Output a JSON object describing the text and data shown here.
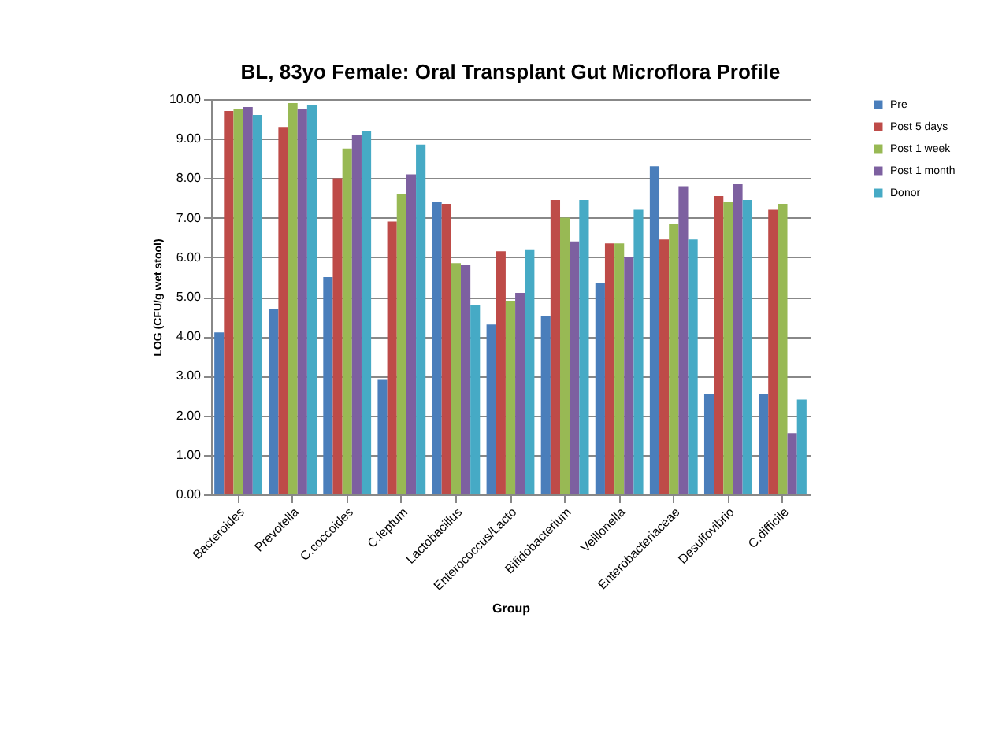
{
  "chart_data": {
    "type": "bar",
    "title": "BL, 83yo Female: Oral Transplant Gut Microflora Profile",
    "xlabel": "Group",
    "ylabel": "LOG (CFU/g wet stool)",
    "categories": [
      "Bacteroides",
      "Prevotella",
      "C.coccoides",
      "C.leptum",
      "Lactobacillus",
      "Enterococcus/Lacto",
      "Bifidobacterium",
      "Veillonella",
      "Enterobacteriaceae",
      "Desulfovibrio",
      "C.difficile"
    ],
    "series": [
      {
        "name": "Pre",
        "color": "#4a7ebb",
        "values": [
          4.1,
          4.7,
          5.5,
          2.9,
          7.4,
          4.3,
          4.5,
          5.35,
          8.3,
          2.55,
          2.55
        ]
      },
      {
        "name": "Post 5 days",
        "color": "#be4b48",
        "values": [
          9.7,
          9.3,
          8.0,
          6.9,
          7.35,
          6.15,
          7.45,
          6.35,
          6.45,
          7.55,
          7.2
        ]
      },
      {
        "name": "Post 1 week",
        "color": "#98b954",
        "values": [
          9.75,
          9.9,
          8.75,
          7.6,
          5.85,
          4.9,
          7.0,
          6.35,
          6.85,
          7.4,
          7.35
        ]
      },
      {
        "name": "Post 1 month",
        "color": "#7d60a0",
        "values": [
          9.8,
          9.75,
          9.1,
          8.1,
          5.8,
          5.1,
          6.4,
          6.0,
          7.8,
          7.85,
          1.55
        ]
      },
      {
        "name": "Donor",
        "color": "#46aac5",
        "values": [
          9.6,
          9.85,
          9.2,
          8.85,
          4.8,
          6.2,
          7.45,
          7.2,
          6.45,
          7.45,
          2.4
        ]
      }
    ],
    "ylim": [
      0,
      10
    ],
    "yticks": [
      {
        "value": 0,
        "label": "0.00"
      },
      {
        "value": 1,
        "label": "1.00"
      },
      {
        "value": 2,
        "label": "2.00"
      },
      {
        "value": 3,
        "label": "3.00"
      },
      {
        "value": 4,
        "label": "4.00"
      },
      {
        "value": 5,
        "label": "5.00"
      },
      {
        "value": 6,
        "label": "6.00"
      },
      {
        "value": 7,
        "label": "7.00"
      },
      {
        "value": 8,
        "label": "8.00"
      },
      {
        "value": 9,
        "label": "9.00"
      },
      {
        "value": 10,
        "label": "10.00"
      }
    ],
    "grid": "y",
    "legend": "right"
  }
}
